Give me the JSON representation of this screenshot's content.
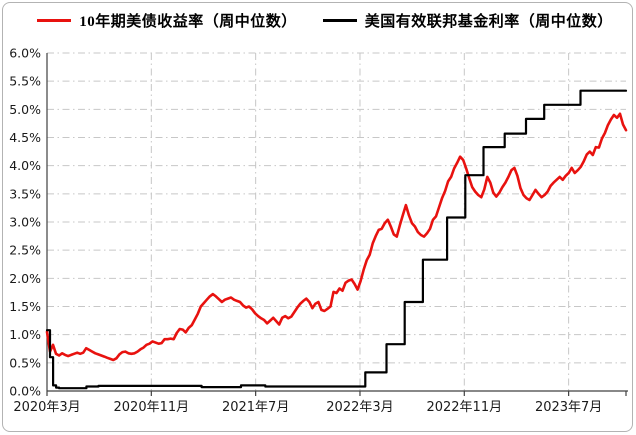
{
  "legend": {
    "items": [
      {
        "label": "10年期美债收益率（周中位数）",
        "color": "#e8120f"
      },
      {
        "label": "美国有效联邦基金利率（周中位数）",
        "color": "#000000"
      }
    ]
  },
  "chart_data": {
    "type": "line",
    "title": "",
    "xlabel": "",
    "ylabel": "",
    "grid": {
      "horizontal": true,
      "vertical": true,
      "style": "dash-dot",
      "color": "#c7c7c7"
    },
    "legend_position": "top-center",
    "y_axis": {
      "min": 0,
      "max": 6,
      "step": 0.5,
      "format": "percent",
      "tick_labels": [
        "0.0%",
        "0.5%",
        "1.0%",
        "1.5%",
        "2.0%",
        "2.5%",
        "3.0%",
        "3.5%",
        "4.0%",
        "4.5%",
        "5.0%",
        "5.5%",
        "6.0%"
      ]
    },
    "x_axis": {
      "tick_labels": [
        "2020年3月",
        "2020年11月",
        "2021年7月",
        "2022年3月",
        "2022年11月",
        "2023年7月"
      ],
      "tick_positions_months": [
        0,
        8,
        16,
        24,
        32,
        40
      ],
      "x_range_months": [
        0,
        44.4
      ],
      "frequency": "weekly",
      "start": "2020年3月",
      "end": "2023年11月"
    },
    "series": [
      {
        "name": "10年期美债收益率（周中位数）",
        "color": "#e8120f",
        "width": 2.6,
        "interpolation": "linear",
        "values": [
          1.05,
          0.7,
          0.82,
          0.66,
          0.63,
          0.67,
          0.64,
          0.62,
          0.64,
          0.66,
          0.68,
          0.66,
          0.68,
          0.76,
          0.73,
          0.7,
          0.67,
          0.65,
          0.63,
          0.61,
          0.59,
          0.57,
          0.55,
          0.58,
          0.65,
          0.69,
          0.7,
          0.67,
          0.66,
          0.67,
          0.7,
          0.74,
          0.77,
          0.82,
          0.84,
          0.88,
          0.86,
          0.84,
          0.85,
          0.92,
          0.92,
          0.93,
          0.92,
          1.03,
          1.1,
          1.09,
          1.04,
          1.12,
          1.17,
          1.27,
          1.37,
          1.5,
          1.56,
          1.62,
          1.68,
          1.72,
          1.68,
          1.63,
          1.58,
          1.62,
          1.64,
          1.66,
          1.62,
          1.6,
          1.58,
          1.52,
          1.48,
          1.5,
          1.45,
          1.38,
          1.33,
          1.29,
          1.26,
          1.2,
          1.25,
          1.3,
          1.24,
          1.18,
          1.3,
          1.33,
          1.29,
          1.32,
          1.4,
          1.48,
          1.55,
          1.6,
          1.64,
          1.58,
          1.47,
          1.55,
          1.58,
          1.44,
          1.42,
          1.46,
          1.5,
          1.76,
          1.74,
          1.82,
          1.78,
          1.92,
          1.96,
          1.98,
          1.9,
          1.8,
          1.95,
          2.15,
          2.32,
          2.42,
          2.62,
          2.75,
          2.86,
          2.88,
          2.98,
          3.04,
          2.92,
          2.78,
          2.74,
          2.94,
          3.12,
          3.3,
          3.12,
          2.98,
          2.92,
          2.82,
          2.77,
          2.74,
          2.8,
          2.88,
          3.04,
          3.1,
          3.26,
          3.42,
          3.55,
          3.72,
          3.8,
          3.95,
          4.05,
          4.16,
          4.1,
          3.95,
          3.78,
          3.62,
          3.54,
          3.48,
          3.44,
          3.58,
          3.8,
          3.7,
          3.52,
          3.45,
          3.52,
          3.62,
          3.7,
          3.8,
          3.92,
          3.96,
          3.82,
          3.6,
          3.48,
          3.42,
          3.39,
          3.48,
          3.57,
          3.5,
          3.44,
          3.48,
          3.54,
          3.64,
          3.7,
          3.75,
          3.8,
          3.75,
          3.82,
          3.87,
          3.96,
          3.87,
          3.92,
          3.98,
          4.08,
          4.2,
          4.25,
          4.19,
          4.33,
          4.32,
          4.48,
          4.58,
          4.72,
          4.82,
          4.9,
          4.85,
          4.92,
          4.73,
          4.63
        ]
      },
      {
        "name": "美国有效联邦基金利率（周中位数）",
        "color": "#000000",
        "width": 2.2,
        "interpolation": "step",
        "values": [
          1.08,
          0.6,
          0.1,
          0.06,
          0.05,
          0.05,
          0.05,
          0.05,
          0.05,
          0.05,
          0.05,
          0.05,
          0.05,
          0.08,
          0.08,
          0.08,
          0.08,
          0.09,
          0.09,
          0.09,
          0.09,
          0.09,
          0.09,
          0.09,
          0.09,
          0.09,
          0.09,
          0.09,
          0.09,
          0.09,
          0.09,
          0.09,
          0.09,
          0.09,
          0.09,
          0.09,
          0.09,
          0.09,
          0.09,
          0.09,
          0.09,
          0.09,
          0.09,
          0.09,
          0.09,
          0.09,
          0.09,
          0.09,
          0.09,
          0.09,
          0.09,
          0.07,
          0.07,
          0.07,
          0.07,
          0.07,
          0.07,
          0.07,
          0.07,
          0.07,
          0.07,
          0.07,
          0.07,
          0.07,
          0.1,
          0.1,
          0.1,
          0.1,
          0.1,
          0.1,
          0.1,
          0.1,
          0.08,
          0.08,
          0.08,
          0.08,
          0.08,
          0.08,
          0.08,
          0.08,
          0.08,
          0.08,
          0.08,
          0.08,
          0.08,
          0.08,
          0.08,
          0.08,
          0.08,
          0.08,
          0.08,
          0.08,
          0.08,
          0.08,
          0.08,
          0.08,
          0.08,
          0.08,
          0.08,
          0.08,
          0.08,
          0.08,
          0.08,
          0.08,
          0.08,
          0.33,
          0.33,
          0.33,
          0.33,
          0.33,
          0.33,
          0.33,
          0.83,
          0.83,
          0.83,
          0.83,
          0.83,
          0.83,
          1.58,
          1.58,
          1.58,
          1.58,
          1.58,
          1.58,
          2.33,
          2.33,
          2.33,
          2.33,
          2.33,
          2.33,
          2.33,
          2.33,
          3.08,
          3.08,
          3.08,
          3.08,
          3.08,
          3.08,
          3.83,
          3.83,
          3.83,
          3.83,
          3.83,
          3.83,
          4.33,
          4.33,
          4.33,
          4.33,
          4.33,
          4.33,
          4.33,
          4.57,
          4.57,
          4.57,
          4.57,
          4.57,
          4.57,
          4.57,
          4.83,
          4.83,
          4.83,
          4.83,
          4.83,
          4.83,
          5.08,
          5.08,
          5.08,
          5.08,
          5.08,
          5.08,
          5.08,
          5.08,
          5.08,
          5.08,
          5.08,
          5.08,
          5.33,
          5.33,
          5.33,
          5.33,
          5.33,
          5.33,
          5.33,
          5.33,
          5.33,
          5.33,
          5.33,
          5.33,
          5.33,
          5.33,
          5.33,
          5.33
        ]
      }
    ]
  }
}
